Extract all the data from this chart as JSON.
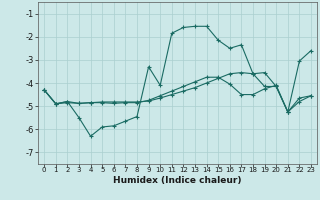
{
  "xlabel": "Humidex (Indice chaleur)",
  "background_color": "#cce8e8",
  "grid_color": "#aacfcf",
  "line_color": "#1a6b63",
  "xlim": [
    -0.5,
    23.5
  ],
  "ylim": [
    -7.5,
    -0.5
  ],
  "xticks": [
    0,
    1,
    2,
    3,
    4,
    5,
    6,
    7,
    8,
    9,
    10,
    11,
    12,
    13,
    14,
    15,
    16,
    17,
    18,
    19,
    20,
    21,
    22,
    23
  ],
  "yticks": [
    -7,
    -6,
    -5,
    -4,
    -3,
    -2,
    -1
  ],
  "curve1_x": [
    0,
    1,
    2,
    3,
    4,
    5,
    6,
    7,
    8,
    9,
    10,
    11,
    12,
    13,
    14,
    15,
    16,
    17,
    18,
    19,
    20,
    21,
    22,
    23
  ],
  "curve1_y": [
    -4.3,
    -4.9,
    -4.8,
    -5.5,
    -6.3,
    -5.9,
    -5.85,
    -5.65,
    -5.45,
    -3.3,
    -4.1,
    -1.85,
    -1.6,
    -1.55,
    -1.55,
    -2.15,
    -2.5,
    -2.35,
    -3.6,
    -3.55,
    -4.15,
    -5.25,
    -3.05,
    -2.6
  ],
  "curve2_x": [
    0,
    1,
    2,
    3,
    4,
    5,
    6,
    7,
    8,
    9,
    10,
    11,
    12,
    13,
    14,
    15,
    16,
    17,
    18,
    19,
    20,
    21,
    22,
    23
  ],
  "curve2_y": [
    -4.3,
    -4.9,
    -4.8,
    -4.88,
    -4.85,
    -4.85,
    -4.88,
    -4.85,
    -4.85,
    -4.75,
    -4.55,
    -4.35,
    -4.15,
    -3.95,
    -3.75,
    -3.75,
    -4.05,
    -4.5,
    -4.5,
    -4.25,
    -4.1,
    -5.25,
    -4.8,
    -4.55
  ],
  "curve3_x": [
    0,
    1,
    2,
    3,
    4,
    5,
    6,
    7,
    8,
    9,
    10,
    11,
    12,
    13,
    14,
    15,
    16,
    17,
    18,
    19,
    20,
    21,
    22,
    23
  ],
  "curve3_y": [
    -4.3,
    -4.9,
    -4.85,
    -4.88,
    -4.85,
    -4.82,
    -4.82,
    -4.82,
    -4.82,
    -4.78,
    -4.65,
    -4.5,
    -4.35,
    -4.2,
    -4.0,
    -3.8,
    -3.6,
    -3.55,
    -3.6,
    -4.15,
    -4.15,
    -5.25,
    -4.65,
    -4.55
  ],
  "figsize": [
    3.2,
    2.0
  ],
  "dpi": 100
}
